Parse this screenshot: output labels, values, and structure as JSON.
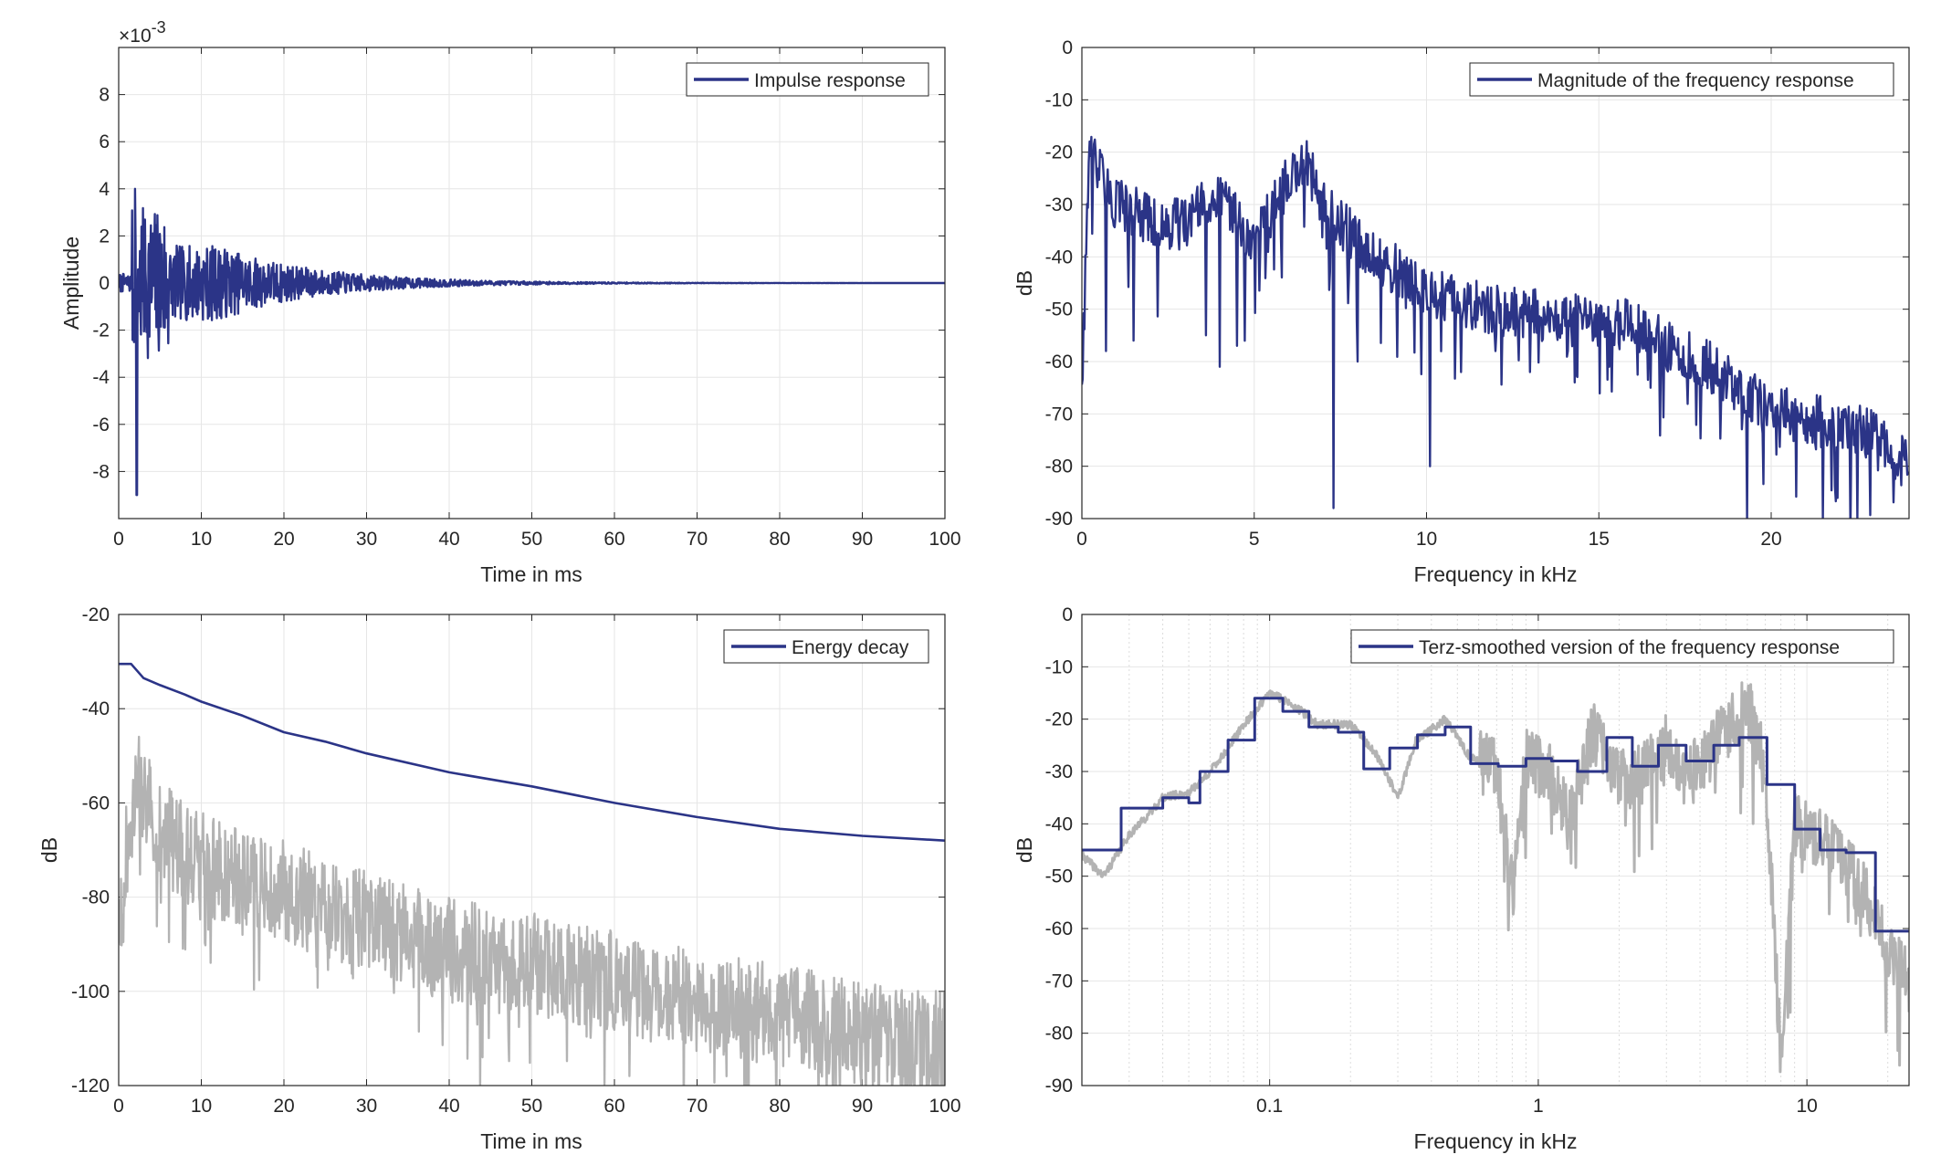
{
  "colors": {
    "primary": "#2b3487",
    "secondary": "#b3b3b3",
    "grid": "#e6e6e6",
    "axis": "#262626"
  },
  "chart_data": [
    {
      "id": "impulse",
      "type": "line",
      "xlabel": "Time in ms",
      "ylabel": "Amplitude",
      "xlim": [
        0,
        100
      ],
      "ylim": [
        -0.01,
        0.01
      ],
      "y_exponent_label": "×10",
      "y_exponent_power": "-3",
      "xticks": [
        0,
        10,
        20,
        30,
        40,
        50,
        60,
        70,
        80,
        90,
        100
      ],
      "xtick_labels": [
        "0",
        "10",
        "20",
        "30",
        "40",
        "50",
        "60",
        "70",
        "80",
        "90",
        "100"
      ],
      "yticks": [
        -8,
        -6,
        -4,
        -2,
        0,
        2,
        4,
        6,
        8
      ],
      "ytick_labels": [
        "-8",
        "-6",
        "-4",
        "-2",
        "0",
        "2",
        "4",
        "6",
        "8"
      ],
      "ytick_scale": 0.001,
      "legend": "top-right",
      "grid": true,
      "series": [
        {
          "name": "Impulse response",
          "color": "#2b3487",
          "note_points": [
            [
              0,
              0
            ],
            [
              0.5,
              -0.0003
            ],
            [
              1.0,
              0.0008
            ],
            [
              1.5,
              -0.0015
            ],
            [
              2.0,
              0.004
            ],
            [
              2.2,
              -0.009
            ],
            [
              2.6,
              0.003
            ],
            [
              3.0,
              -0.0025
            ],
            [
              3.5,
              0.0038
            ],
            [
              4.0,
              -0.002
            ],
            [
              4.5,
              0.0035
            ],
            [
              5.0,
              -0.0018
            ],
            [
              6.0,
              0.002
            ],
            [
              7.0,
              -0.0015
            ],
            [
              8.0,
              0.0015
            ],
            [
              9.0,
              -0.0014
            ],
            [
              10.0,
              0.0017
            ],
            [
              11.0,
              -0.0012
            ],
            [
              12.0,
              0.0009
            ],
            [
              15.0,
              -0.0007
            ],
            [
              18.0,
              0.0005
            ],
            [
              20.0,
              -0.0006
            ],
            [
              25.0,
              0.0004
            ],
            [
              30.0,
              -0.0003
            ],
            [
              40.0,
              0.0002
            ],
            [
              50.0,
              -0.0001
            ],
            [
              60.0,
              5e-05
            ],
            [
              100.0,
              0.0
            ]
          ]
        }
      ]
    },
    {
      "id": "magnitude",
      "type": "line",
      "xlabel": "Frequency in kHz",
      "ylabel": "dB",
      "xlim": [
        0,
        24
      ],
      "ylim": [
        -90,
        0
      ],
      "xticks": [
        0,
        5,
        10,
        15,
        20
      ],
      "xtick_labels": [
        "0",
        "5",
        "10",
        "15",
        "20"
      ],
      "yticks": [
        -90,
        -80,
        -70,
        -60,
        -50,
        -40,
        -30,
        -20,
        -10,
        0
      ],
      "ytick_labels": [
        "-90",
        "-80",
        "-70",
        "-60",
        "-50",
        "-40",
        "-30",
        "-20",
        "-10",
        "0"
      ],
      "legend": "top-right",
      "grid": true,
      "series": [
        {
          "name": "Magnitude of the frequency response",
          "color": "#2b3487",
          "envelope_kHz_dB": [
            [
              0,
              -62
            ],
            [
              0.2,
              -15
            ],
            [
              1,
              -25
            ],
            [
              2,
              -28
            ],
            [
              3,
              -29
            ],
            [
              4,
              -22
            ],
            [
              5,
              -32
            ],
            [
              6,
              -20
            ],
            [
              6.5,
              -17
            ],
            [
              7,
              -25
            ],
            [
              8,
              -32
            ],
            [
              9,
              -37
            ],
            [
              10,
              -42
            ],
            [
              12,
              -45
            ],
            [
              14,
              -47
            ],
            [
              16,
              -48
            ],
            [
              17,
              -52
            ],
            [
              18,
              -55
            ],
            [
              19,
              -60
            ],
            [
              20,
              -64
            ],
            [
              21,
              -66
            ],
            [
              22,
              -67
            ],
            [
              23,
              -69
            ],
            [
              24,
              -75
            ]
          ],
          "dips_kHz_dB": [
            [
              0.7,
              -58
            ],
            [
              1.5,
              -56
            ],
            [
              3.6,
              -55
            ],
            [
              4,
              -61
            ],
            [
              4.5,
              -57
            ],
            [
              7.3,
              -88
            ],
            [
              8,
              -60
            ],
            [
              10.1,
              -80
            ],
            [
              11,
              -62
            ],
            [
              12,
              -58
            ],
            [
              13,
              -62
            ],
            [
              14.2,
              -54
            ],
            [
              15.3,
              -61
            ],
            [
              16.5,
              -65
            ],
            [
              17.6,
              -61
            ],
            [
              19.3,
              -90
            ],
            [
              21.5,
              -90
            ],
            [
              22.5,
              -90
            ]
          ]
        }
      ]
    },
    {
      "id": "energy",
      "type": "line",
      "xlabel": "Time in ms",
      "ylabel": "dB",
      "xlim": [
        0,
        100
      ],
      "ylim": [
        -120,
        -20
      ],
      "xticks": [
        0,
        10,
        20,
        30,
        40,
        50,
        60,
        70,
        80,
        90,
        100
      ],
      "xtick_labels": [
        "0",
        "10",
        "20",
        "30",
        "40",
        "50",
        "60",
        "70",
        "80",
        "90",
        "100"
      ],
      "yticks": [
        -120,
        -100,
        -80,
        -60,
        -40,
        -20
      ],
      "ytick_labels": [
        "-120",
        "-100",
        "-80",
        "-60",
        "-40",
        "-20"
      ],
      "legend": "top-right",
      "grid": true,
      "series": [
        {
          "name": "Energy decay",
          "color": "#2b3487",
          "points": [
            [
              0,
              -30.5
            ],
            [
              1.5,
              -30.5
            ],
            [
              2,
              -31.5
            ],
            [
              3,
              -33.5
            ],
            [
              5,
              -35
            ],
            [
              8,
              -37
            ],
            [
              10,
              -38.5
            ],
            [
              15,
              -41.5
            ],
            [
              20,
              -45
            ],
            [
              25,
              -47
            ],
            [
              30,
              -49.5
            ],
            [
              40,
              -53.5
            ],
            [
              50,
              -56.5
            ],
            [
              60,
              -60
            ],
            [
              70,
              -63
            ],
            [
              80,
              -65.5
            ],
            [
              90,
              -67
            ],
            [
              100,
              -68
            ]
          ]
        },
        {
          "name": "",
          "color": "#b3b3b3",
          "envelope_ms_dB": [
            [
              0,
              -75
            ],
            [
              2,
              -42
            ],
            [
              5,
              -55
            ],
            [
              10,
              -62
            ],
            [
              20,
              -68
            ],
            [
              30,
              -74
            ],
            [
              40,
              -80
            ],
            [
              50,
              -83
            ],
            [
              60,
              -87
            ],
            [
              70,
              -91
            ],
            [
              80,
              -94
            ],
            [
              90,
              -98
            ],
            [
              100,
              -100
            ]
          ]
        }
      ]
    },
    {
      "id": "terz",
      "type": "line",
      "xlabel": "Frequency in kHz",
      "ylabel": "dB",
      "xscale": "log",
      "xlim": [
        0.02,
        24
      ],
      "ylim": [
        -90,
        0
      ],
      "xticks": [
        0.1,
        1,
        10
      ],
      "xtick_labels": [
        "0.1",
        "1",
        "10"
      ],
      "yticks": [
        -90,
        -80,
        -70,
        -60,
        -50,
        -40,
        -30,
        -20,
        -10,
        0
      ],
      "ytick_labels": [
        "-90",
        "-80",
        "-70",
        "-60",
        "-50",
        "-40",
        "-30",
        "-20",
        "-10",
        "0"
      ],
      "legend": "top-right",
      "grid": true,
      "series": [
        {
          "name": "Terz-smoothed version of the frequency response",
          "color": "#2b3487",
          "steps_kHz_dB": [
            [
              0.02,
              -45
            ],
            [
              0.028,
              -37
            ],
            [
              0.04,
              -35
            ],
            [
              0.05,
              -36
            ],
            [
              0.055,
              -30
            ],
            [
              0.07,
              -24
            ],
            [
              0.088,
              -16
            ],
            [
              0.112,
              -18.5
            ],
            [
              0.14,
              -21.5
            ],
            [
              0.18,
              -22.5
            ],
            [
              0.224,
              -29.5
            ],
            [
              0.28,
              -25.5
            ],
            [
              0.355,
              -23
            ],
            [
              0.45,
              -21.5
            ],
            [
              0.56,
              -28.5
            ],
            [
              0.71,
              -29
            ],
            [
              0.9,
              -27.5
            ],
            [
              1.12,
              -28
            ],
            [
              1.4,
              -30
            ],
            [
              1.8,
              -23.5
            ],
            [
              2.24,
              -29
            ],
            [
              2.8,
              -25
            ],
            [
              3.55,
              -28
            ],
            [
              4.5,
              -25
            ],
            [
              5.6,
              -23.5
            ],
            [
              7.1,
              -32.5
            ],
            [
              9,
              -41
            ],
            [
              11.2,
              -45
            ],
            [
              14,
              -45.5
            ],
            [
              18,
              -60.5
            ],
            [
              24,
              -60.5
            ]
          ]
        },
        {
          "name": "",
          "color": "#b3b3b3",
          "points_kHz_dB": [
            [
              0.02,
              -46
            ],
            [
              0.024,
              -50
            ],
            [
              0.03,
              -42
            ],
            [
              0.04,
              -35
            ],
            [
              0.05,
              -34
            ],
            [
              0.06,
              -30
            ],
            [
              0.08,
              -21
            ],
            [
              0.1,
              -15
            ],
            [
              0.12,
              -17
            ],
            [
              0.15,
              -21
            ],
            [
              0.2,
              -21
            ],
            [
              0.25,
              -27
            ],
            [
              0.3,
              -35
            ],
            [
              0.35,
              -24
            ],
            [
              0.45,
              -20
            ],
            [
              0.55,
              -27
            ],
            [
              0.7,
              -30
            ],
            [
              0.8,
              -53
            ],
            [
              0.9,
              -28
            ],
            [
              1.1,
              -30
            ],
            [
              1.3,
              -40
            ],
            [
              1.6,
              -22
            ],
            [
              2,
              -32
            ],
            [
              2.5,
              -30
            ],
            [
              3,
              -24
            ],
            [
              3.5,
              -32
            ],
            [
              4.5,
              -25
            ],
            [
              6,
              -17
            ],
            [
              7,
              -30
            ],
            [
              8,
              -85
            ],
            [
              9,
              -40
            ],
            [
              12,
              -44
            ],
            [
              15,
              -50
            ],
            [
              18,
              -58
            ],
            [
              20,
              -65
            ],
            [
              24,
              -70
            ]
          ]
        }
      ]
    }
  ]
}
